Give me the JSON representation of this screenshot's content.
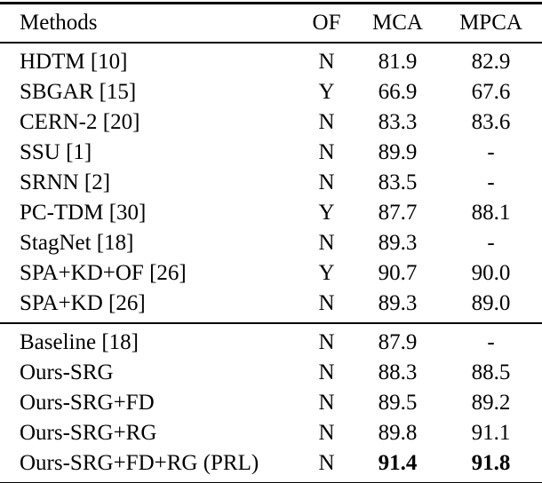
{
  "table": {
    "header": {
      "methods": "Methods",
      "of": "OF",
      "mca": "MCA",
      "mpca": "MPCA"
    },
    "sections": [
      {
        "name": "prior-methods",
        "rows": [
          {
            "method": "HDTM [10]",
            "of": "N",
            "mca": "81.9",
            "mpca": "82.9",
            "bold_mca": false,
            "bold_mpca": false
          },
          {
            "method": "SBGAR [15]",
            "of": "Y",
            "mca": "66.9",
            "mpca": "67.6",
            "bold_mca": false,
            "bold_mpca": false
          },
          {
            "method": "CERN-2 [20]",
            "of": "N",
            "mca": "83.3",
            "mpca": "83.6",
            "bold_mca": false,
            "bold_mpca": false
          },
          {
            "method": "SSU [1]",
            "of": "N",
            "mca": "89.9",
            "mpca": "-",
            "bold_mca": false,
            "bold_mpca": false
          },
          {
            "method": "SRNN [2]",
            "of": "N",
            "mca": "83.5",
            "mpca": "-",
            "bold_mca": false,
            "bold_mpca": false
          },
          {
            "method": "PC-TDM [30]",
            "of": "Y",
            "mca": "87.7",
            "mpca": "88.1",
            "bold_mca": false,
            "bold_mpca": false
          },
          {
            "method": "StagNet [18]",
            "of": "N",
            "mca": "89.3",
            "mpca": "-",
            "bold_mca": false,
            "bold_mpca": false
          },
          {
            "method": "SPA+KD+OF [26]",
            "of": "Y",
            "mca": "90.7",
            "mpca": "90.0",
            "bold_mca": false,
            "bold_mpca": false
          },
          {
            "method": "SPA+KD [26]",
            "of": "N",
            "mca": "89.3",
            "mpca": "89.0",
            "bold_mca": false,
            "bold_mpca": false
          }
        ]
      },
      {
        "name": "ours",
        "rows": [
          {
            "method": "Baseline [18]",
            "of": "N",
            "mca": "87.9",
            "mpca": "-",
            "bold_mca": false,
            "bold_mpca": false
          },
          {
            "method": "Ours-SRG",
            "of": "N",
            "mca": "88.3",
            "mpca": "88.5",
            "bold_mca": false,
            "bold_mpca": false
          },
          {
            "method": "Ours-SRG+FD",
            "of": "N",
            "mca": "89.5",
            "mpca": "89.2",
            "bold_mca": false,
            "bold_mpca": false
          },
          {
            "method": "Ours-SRG+RG",
            "of": "N",
            "mca": "89.8",
            "mpca": "91.1",
            "bold_mca": false,
            "bold_mpca": false
          },
          {
            "method": "Ours-SRG+FD+RG (PRL)",
            "of": "N",
            "mca": "91.4",
            "mpca": "91.8",
            "bold_mca": true,
            "bold_mpca": true
          }
        ]
      }
    ]
  }
}
